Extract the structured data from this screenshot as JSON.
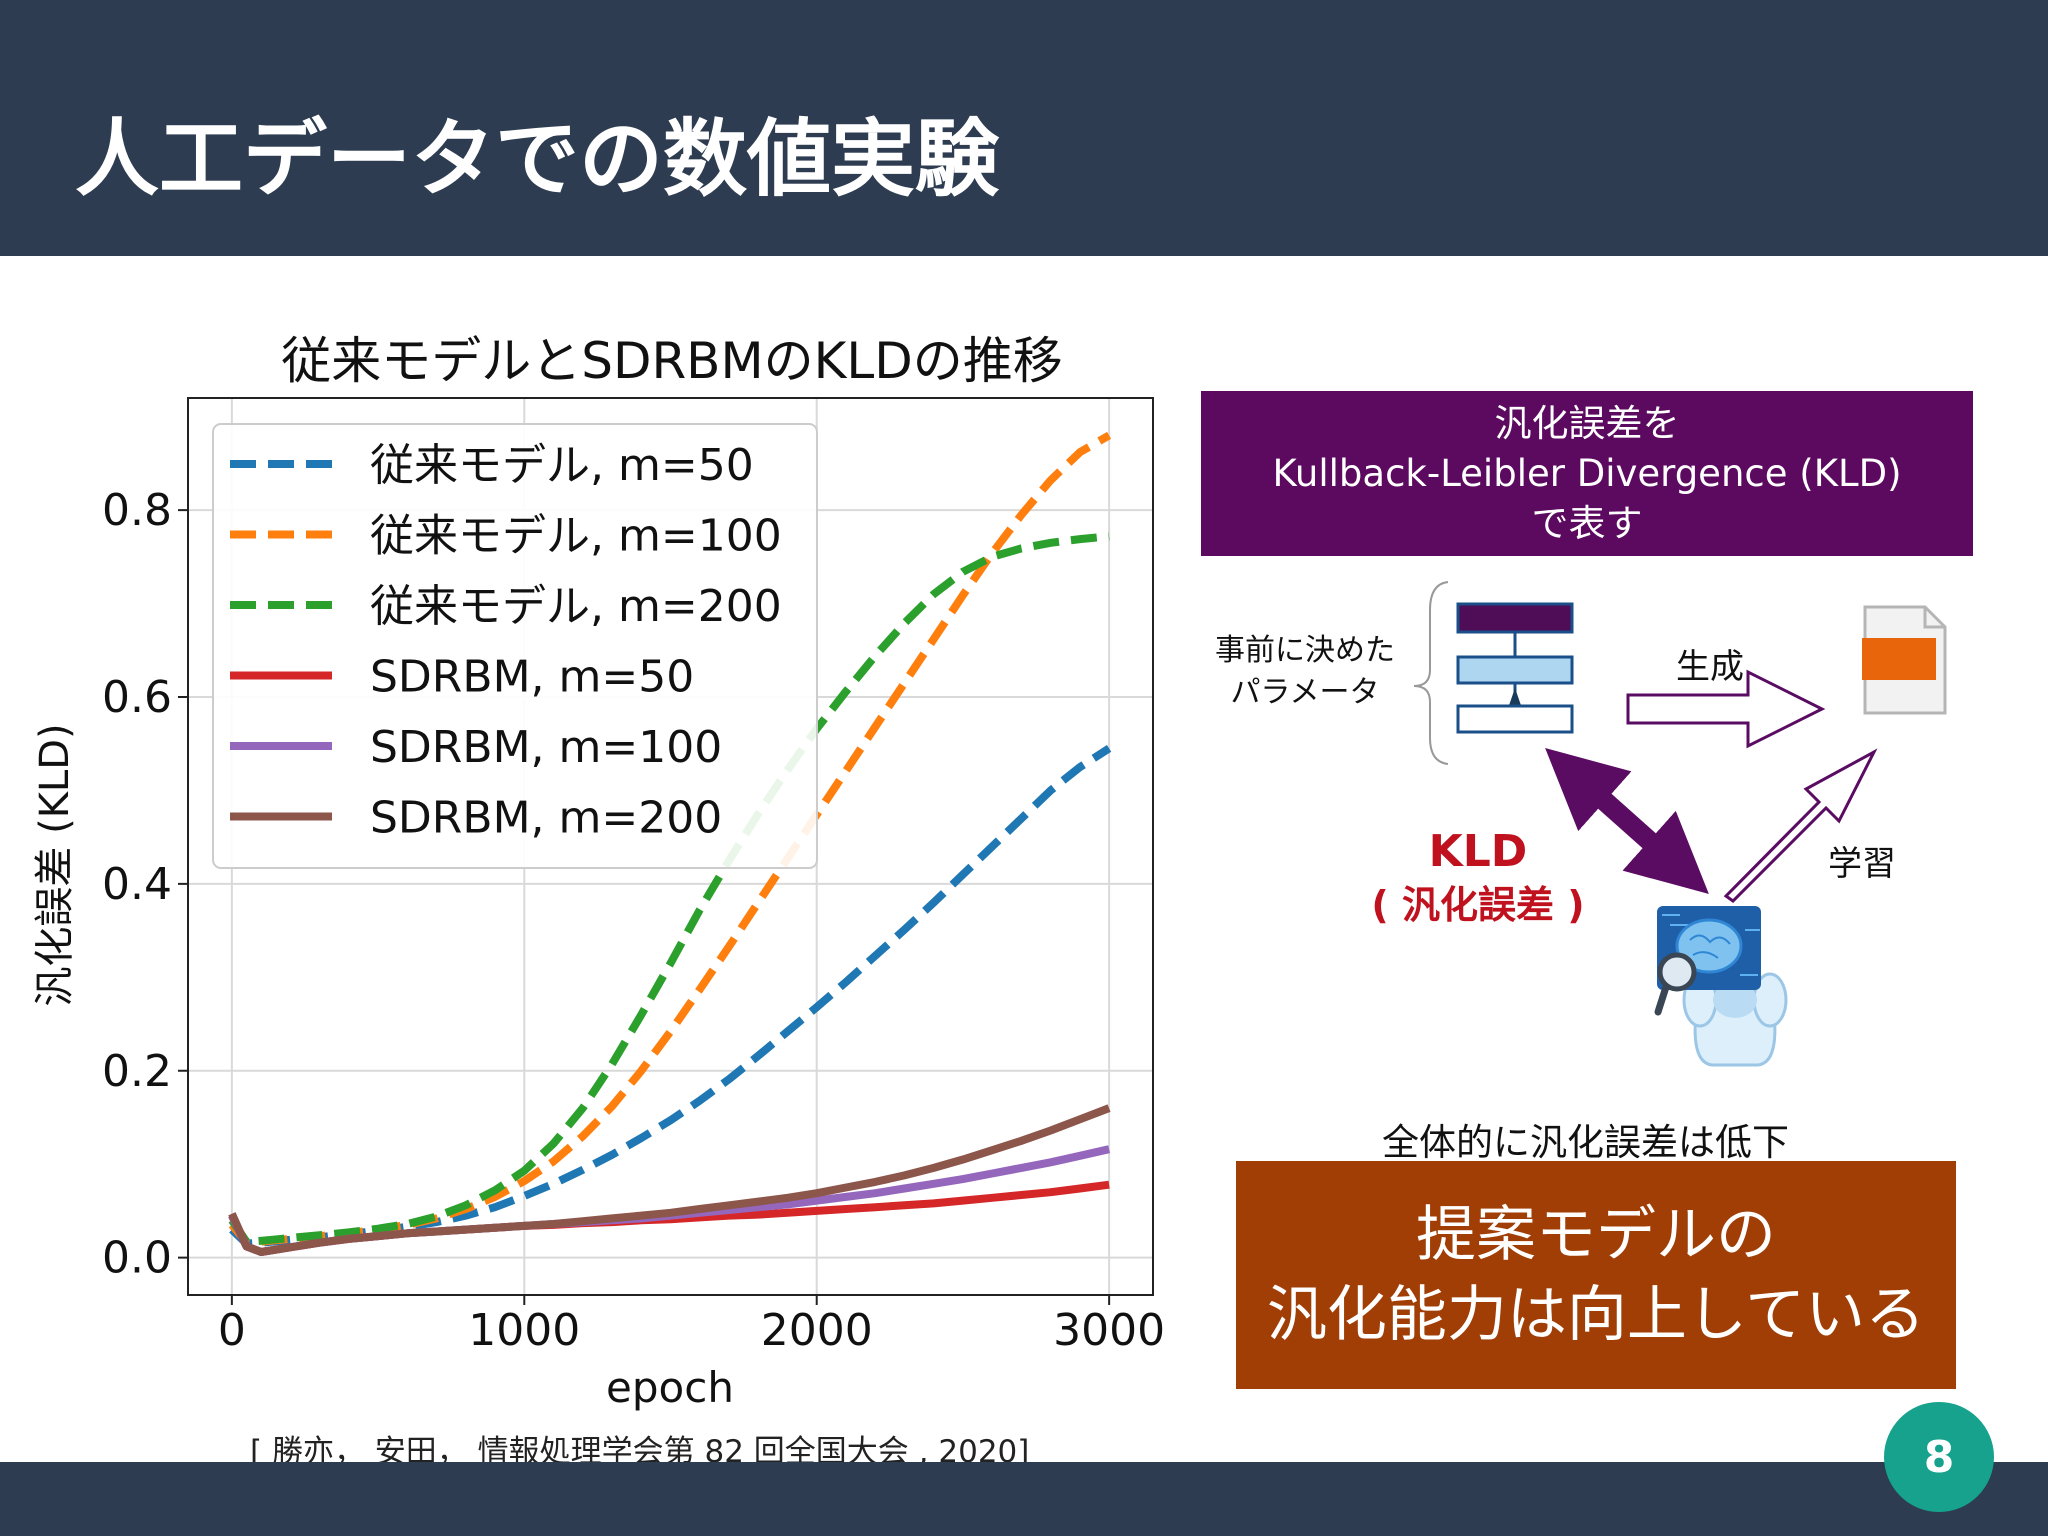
{
  "slide": {
    "title": "人工データでの数値実験",
    "page_number": "8"
  },
  "chart_data": {
    "type": "line",
    "title": "従来モデルとSDRBMのKLDの推移",
    "xlabel": "epoch",
    "ylabel": "汎化誤差 (KLD)",
    "xlim": [
      -150,
      3150
    ],
    "ylim": [
      -0.04,
      0.92
    ],
    "xticks": [
      "0",
      "1000",
      "2000",
      "3000"
    ],
    "yticks": [
      "0.0",
      "0.2",
      "0.4",
      "0.6",
      "0.8"
    ],
    "grid": true,
    "legend_position": "upper-left",
    "x": [
      0,
      50,
      100,
      200,
      300,
      400,
      500,
      600,
      700,
      800,
      900,
      1000,
      1100,
      1200,
      1300,
      1400,
      1500,
      1600,
      1700,
      1800,
      1900,
      2000,
      2100,
      2200,
      2300,
      2400,
      2500,
      2600,
      2700,
      2800,
      2900,
      3000
    ],
    "series": [
      {
        "name": "従来モデル, m=50",
        "color": "#1f77b4",
        "style": "dashed",
        "values": [
          0.03,
          0.015,
          0.016,
          0.019,
          0.022,
          0.025,
          0.029,
          0.033,
          0.038,
          0.045,
          0.054,
          0.066,
          0.079,
          0.094,
          0.11,
          0.128,
          0.147,
          0.168,
          0.191,
          0.216,
          0.242,
          0.268,
          0.295,
          0.323,
          0.351,
          0.38,
          0.41,
          0.44,
          0.47,
          0.5,
          0.525,
          0.545
        ]
      },
      {
        "name": "従来モデル, m=100",
        "color": "#ff7f0e",
        "style": "dashed",
        "values": [
          0.035,
          0.016,
          0.017,
          0.02,
          0.023,
          0.026,
          0.03,
          0.035,
          0.042,
          0.052,
          0.065,
          0.082,
          0.103,
          0.13,
          0.162,
          0.2,
          0.242,
          0.287,
          0.333,
          0.38,
          0.427,
          0.474,
          0.521,
          0.568,
          0.615,
          0.662,
          0.709,
          0.754,
          0.795,
          0.832,
          0.862,
          0.88
        ]
      },
      {
        "name": "従来モデル, m=200",
        "color": "#2ca02c",
        "style": "dashed",
        "values": [
          0.04,
          0.017,
          0.018,
          0.021,
          0.024,
          0.027,
          0.031,
          0.036,
          0.044,
          0.056,
          0.072,
          0.093,
          0.122,
          0.16,
          0.207,
          0.26,
          0.315,
          0.372,
          0.425,
          0.475,
          0.522,
          0.566,
          0.606,
          0.644,
          0.679,
          0.71,
          0.734,
          0.75,
          0.759,
          0.765,
          0.769,
          0.772
        ]
      },
      {
        "name": "SDRBM, m=50",
        "color": "#d62728",
        "style": "solid",
        "values": [
          0.045,
          0.012,
          0.006,
          0.011,
          0.016,
          0.02,
          0.023,
          0.026,
          0.028,
          0.03,
          0.032,
          0.034,
          0.035,
          0.037,
          0.038,
          0.04,
          0.041,
          0.043,
          0.045,
          0.046,
          0.048,
          0.05,
          0.052,
          0.054,
          0.056,
          0.058,
          0.061,
          0.064,
          0.067,
          0.07,
          0.074,
          0.078
        ]
      },
      {
        "name": "SDRBM, m=100",
        "color": "#9467bd",
        "style": "solid",
        "values": [
          0.045,
          0.012,
          0.006,
          0.011,
          0.016,
          0.02,
          0.023,
          0.026,
          0.028,
          0.03,
          0.032,
          0.034,
          0.036,
          0.038,
          0.04,
          0.042,
          0.045,
          0.048,
          0.051,
          0.054,
          0.057,
          0.061,
          0.065,
          0.069,
          0.074,
          0.079,
          0.084,
          0.09,
          0.096,
          0.102,
          0.109,
          0.116
        ]
      },
      {
        "name": "SDRBM, m=200",
        "color": "#8c564b",
        "style": "solid",
        "values": [
          0.047,
          0.012,
          0.006,
          0.011,
          0.016,
          0.02,
          0.023,
          0.026,
          0.028,
          0.03,
          0.032,
          0.034,
          0.036,
          0.039,
          0.042,
          0.045,
          0.048,
          0.052,
          0.056,
          0.06,
          0.064,
          0.069,
          0.075,
          0.081,
          0.088,
          0.096,
          0.105,
          0.115,
          0.125,
          0.136,
          0.148,
          0.16
        ]
      }
    ]
  },
  "citation": "[ 勝亦， 安田， 情報処理学会第 82 回全国大会 , 2020]",
  "kld_definition": {
    "line1": "汎化誤差を",
    "line2": "Kullback-Leibler Divergence (KLD)",
    "line3": "で表す"
  },
  "diagram": {
    "param_label_line1": "事前に決めた",
    "param_label_line2": "パラメータ",
    "generate_label": "生成",
    "learn_label": "学習",
    "kld_label": "KLD",
    "kld_sub_label": "( 汎化誤差 )",
    "icons": [
      "neural-network-icon",
      "document-icon",
      "ai-brain-robot-icon"
    ],
    "colors": {
      "network_top": "#4f0d58",
      "network_layer": "#aed6f1",
      "network_border": "#1a4f8a",
      "double_arrow": "#5a0c63",
      "kld_text": "#c0111f",
      "doc_tab": "#e8650b"
    }
  },
  "summary_note": "全体的に汎化誤差は低下",
  "conclusion": {
    "line1": "提案モデルの",
    "line2": "汎化能力は向上している"
  }
}
